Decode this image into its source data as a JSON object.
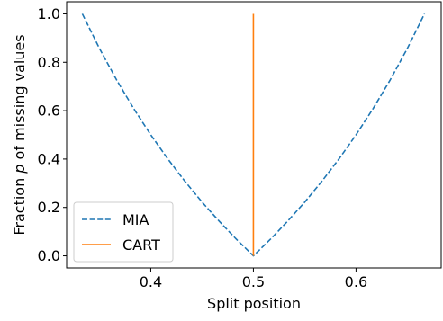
{
  "chart_data": {
    "type": "line",
    "xlabel": "Split position",
    "ylabel": "Fraction p of missing values",
    "xlim": [
      0.318,
      0.683
    ],
    "ylim": [
      -0.05,
      1.05
    ],
    "xticks": [
      0.4,
      0.5,
      0.6
    ],
    "yticks": [
      0.0,
      0.2,
      0.4,
      0.6,
      0.8,
      1.0
    ],
    "xtick_labels": [
      "0.4",
      "0.5",
      "0.6"
    ],
    "ytick_labels": [
      "0.0",
      "0.2",
      "0.4",
      "0.6",
      "0.8",
      "1.0"
    ],
    "grid": false,
    "legend_position": "lower-left",
    "series": [
      {
        "name": "MIA",
        "style": "dashed",
        "color": "#1f77b4",
        "x": [
          0.3333,
          0.35,
          0.3667,
          0.3833,
          0.4,
          0.4167,
          0.4333,
          0.45,
          0.4667,
          0.4833,
          0.5,
          0.5167,
          0.5333,
          0.55,
          0.5667,
          0.5833,
          0.6,
          0.6167,
          0.6333,
          0.65,
          0.6667
        ],
        "y": [
          1.0,
          0.857,
          0.727,
          0.609,
          0.5,
          0.4,
          0.308,
          0.222,
          0.143,
          0.069,
          0.0,
          0.069,
          0.143,
          0.222,
          0.308,
          0.4,
          0.5,
          0.609,
          0.727,
          0.857,
          1.0
        ]
      },
      {
        "name": "CART",
        "style": "solid",
        "color": "#ff7f0e",
        "x": [
          0.5,
          0.5
        ],
        "y": [
          0.0,
          1.0
        ]
      }
    ]
  }
}
